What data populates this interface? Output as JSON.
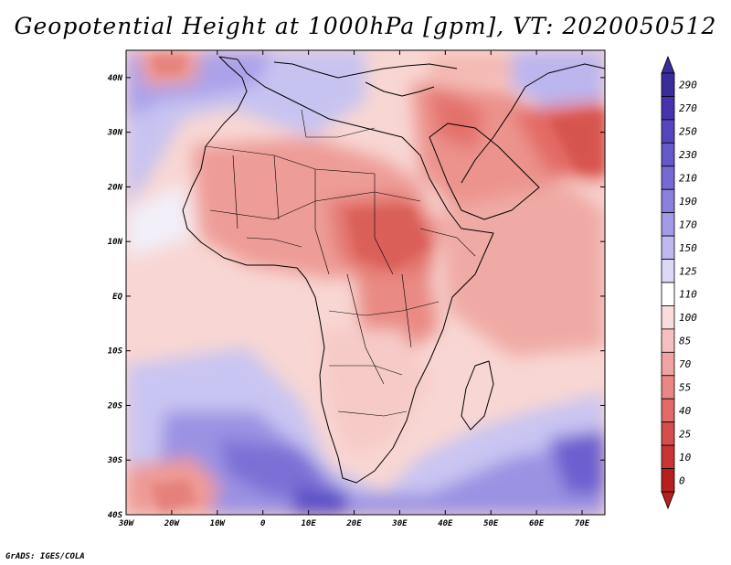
{
  "title": "Geopotential Height at 1000hPa [gpm], VT: 2020050512",
  "credit": "GrADS: IGES/COLA",
  "map": {
    "variable": "Geopotential Height at 1000hPa",
    "units": "gpm",
    "valid_time": "2020050512",
    "lat_labels": [
      "40N",
      "30N",
      "20N",
      "10N",
      "EQ",
      "10S",
      "20S",
      "30S",
      "40S"
    ],
    "lon_labels": [
      "30W",
      "20W",
      "10W",
      "0",
      "10E",
      "20E",
      "30E",
      "40E",
      "50E",
      "60E",
      "70E"
    ],
    "lat_range": [
      -40,
      45
    ],
    "lon_range": [
      -30,
      75
    ]
  },
  "legend": {
    "levels": [
      "290",
      "270",
      "250",
      "230",
      "210",
      "190",
      "170",
      "150",
      "125",
      "110",
      "100",
      "85",
      "70",
      "55",
      "40",
      "25",
      "10",
      "0"
    ],
    "colors": [
      "#3a2c9c",
      "#4633ae",
      "#5545bd",
      "#6558c8",
      "#7669d2",
      "#8a7fdc",
      "#a39be6",
      "#bfb9f0",
      "#dcd9f8",
      "#ffffff",
      "#fbdcdc",
      "#f6c0c0",
      "#f0a3a3",
      "#e98787",
      "#e06a6a",
      "#d54e4e",
      "#c73535",
      "#b71f1f"
    ]
  }
}
